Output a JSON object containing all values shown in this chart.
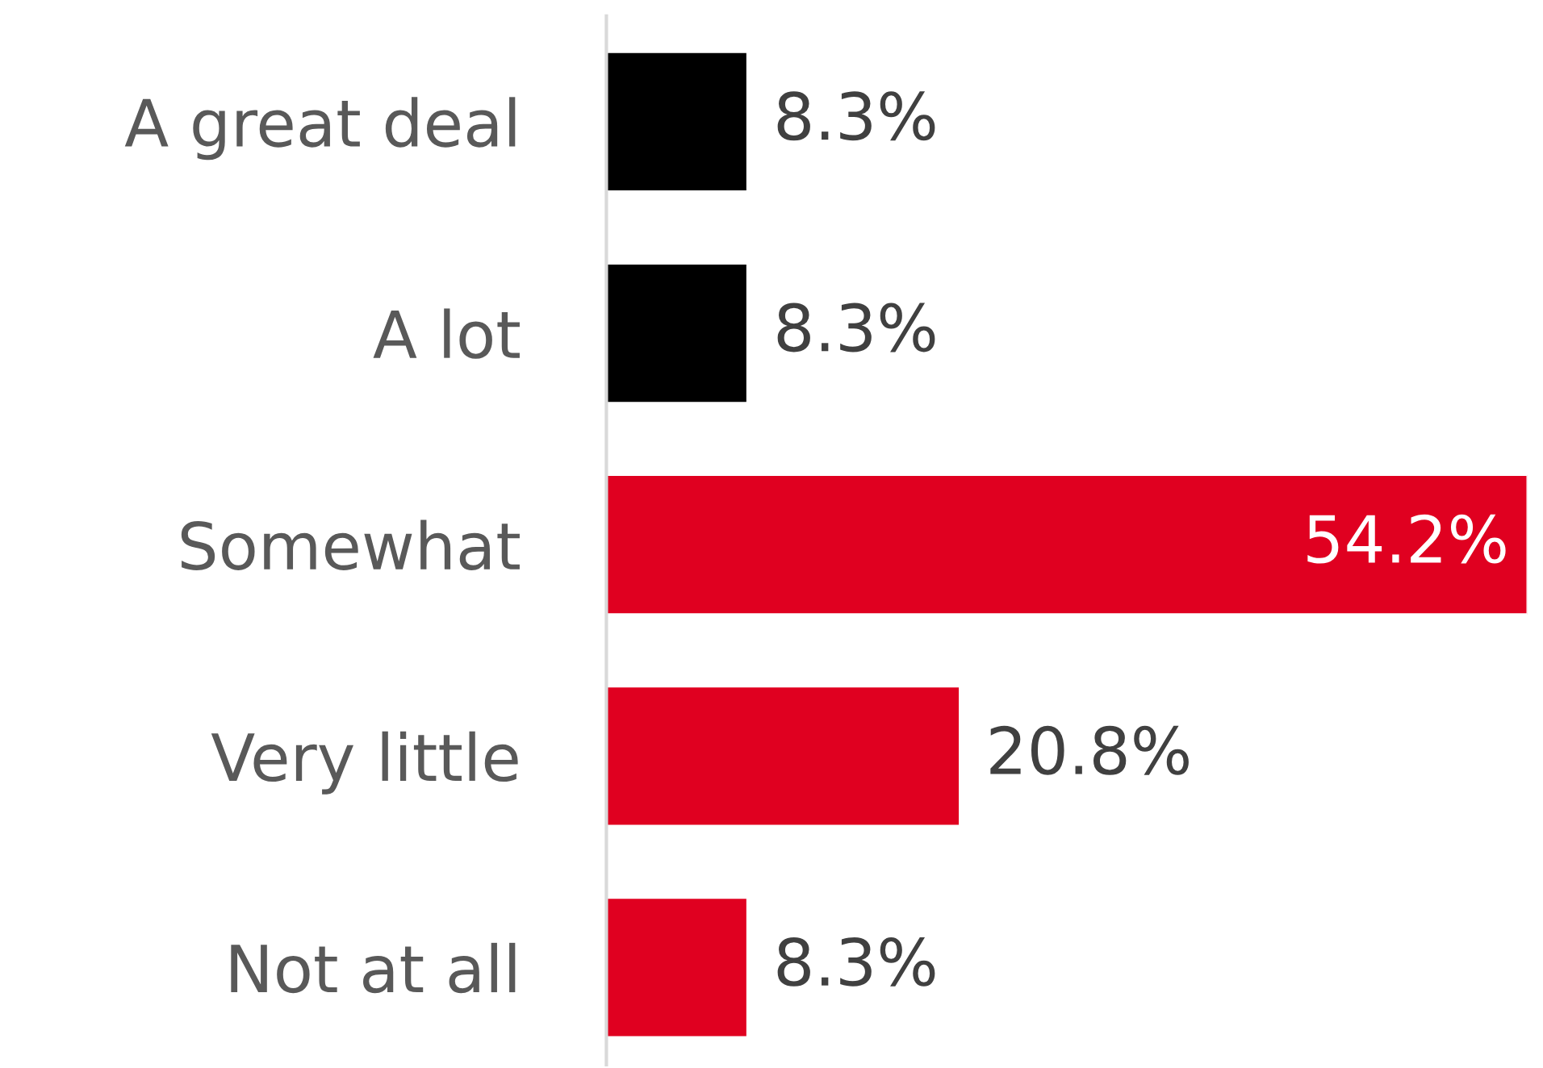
{
  "chart_data": {
    "type": "bar",
    "orientation": "horizontal",
    "categories": [
      "A great deal",
      "A lot",
      "Somewhat",
      "Very little",
      "Not at all"
    ],
    "values": [
      8.3,
      8.3,
      54.2,
      20.8,
      8.3
    ],
    "colors": [
      "#000000",
      "#000000",
      "#e00020",
      "#e00020",
      "#e00020"
    ],
    "value_labels": [
      "8.3%",
      "8.3%",
      "54.2%",
      "20.8%",
      "8.3%"
    ],
    "grid": false,
    "legend": false
  }
}
